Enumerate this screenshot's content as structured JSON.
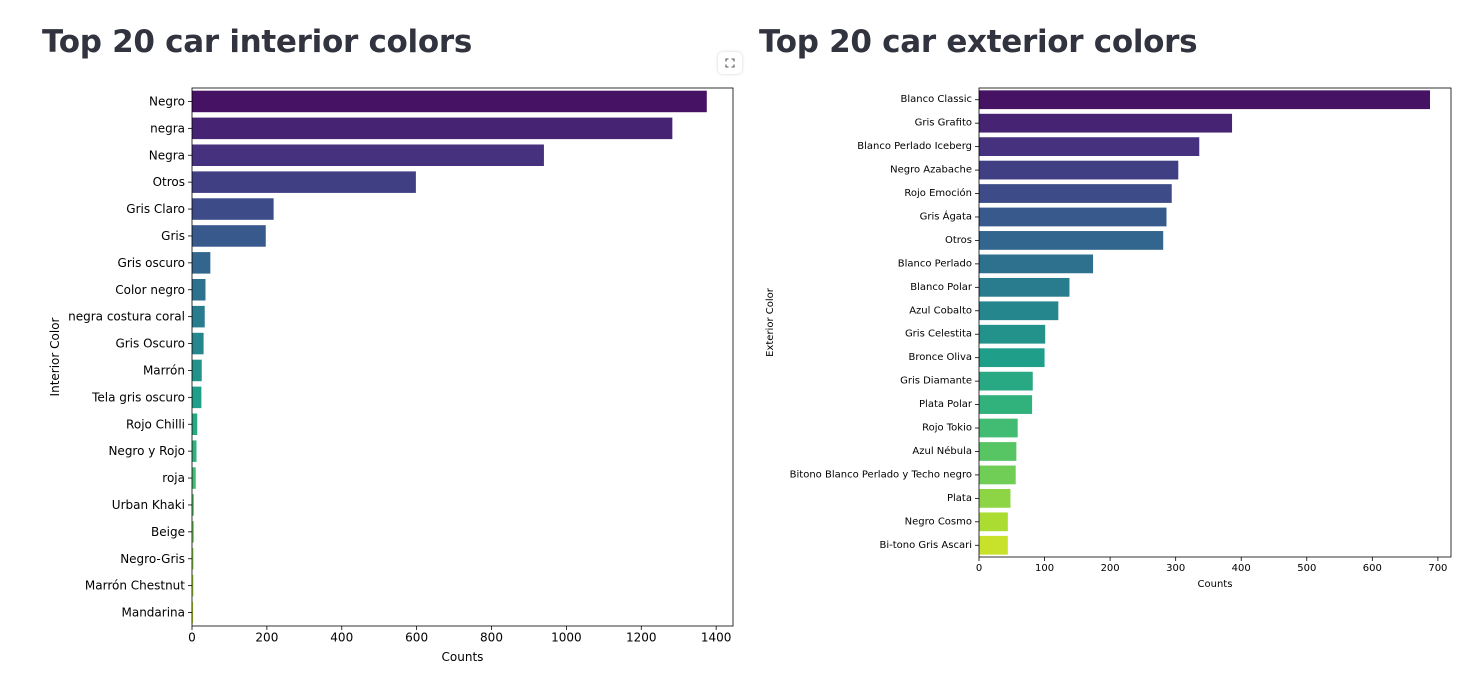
{
  "icons": {
    "fullscreen": "fullscreen-expand-icon"
  },
  "chart_data": [
    {
      "type": "bar",
      "orientation": "horizontal",
      "title": "Top 20 car interior colors",
      "xlabel": "Counts",
      "ylabel": "Interior Color",
      "xlim": [
        0,
        1445
      ],
      "xticks": [
        0,
        200,
        400,
        600,
        800,
        1000,
        1200,
        1400
      ],
      "grid": false,
      "palette": "viridis",
      "categories": [
        "Negro",
        "negra",
        "Negra",
        "Otros",
        "Gris Claro",
        "Gris",
        "Gris oscuro",
        "Color negro",
        "negra costura coral",
        "Gris Oscuro",
        "Marrón",
        "Tela gris oscuro",
        "Rojo Chilli",
        "Negro y Rojo",
        "roja",
        "Urban Khaki",
        "Beige",
        "Negro-Gris",
        "Marrón Chestnut",
        "Mandarina"
      ],
      "values": [
        1375,
        1283,
        940,
        598,
        218,
        197,
        49,
        36,
        34,
        31,
        26,
        25,
        14,
        12,
        10,
        5,
        5,
        4,
        4,
        3
      ]
    },
    {
      "type": "bar",
      "orientation": "horizontal",
      "title": "Top 20 car exterior colors",
      "xlabel": "Counts",
      "ylabel": "Exterior Color",
      "xlim": [
        0,
        720
      ],
      "xticks": [
        0,
        100,
        200,
        300,
        400,
        500,
        600,
        700
      ],
      "grid": false,
      "palette": "viridis",
      "categories": [
        "Blanco Classic",
        "Gris Grafito",
        "Blanco Perlado Iceberg",
        "Negro Azabache",
        "Rojo Emoción",
        "Gris Ágata",
        "Otros",
        "Blanco Perlado",
        "Blanco Polar",
        "Azul Cobalto",
        "Gris Celestita",
        "Bronce Oliva",
        "Gris Diamante",
        "Plata Polar",
        "Rojo Tokio",
        "Azul Nébula",
        "Bitono Blanco Perlado y Techo negro",
        "Plata",
        "Negro Cosmo",
        "Bi-tono Gris Ascari"
      ],
      "values": [
        688,
        386,
        336,
        304,
        294,
        286,
        281,
        174,
        138,
        121,
        101,
        100,
        82,
        81,
        59,
        57,
        56,
        48,
        44,
        44
      ]
    }
  ]
}
